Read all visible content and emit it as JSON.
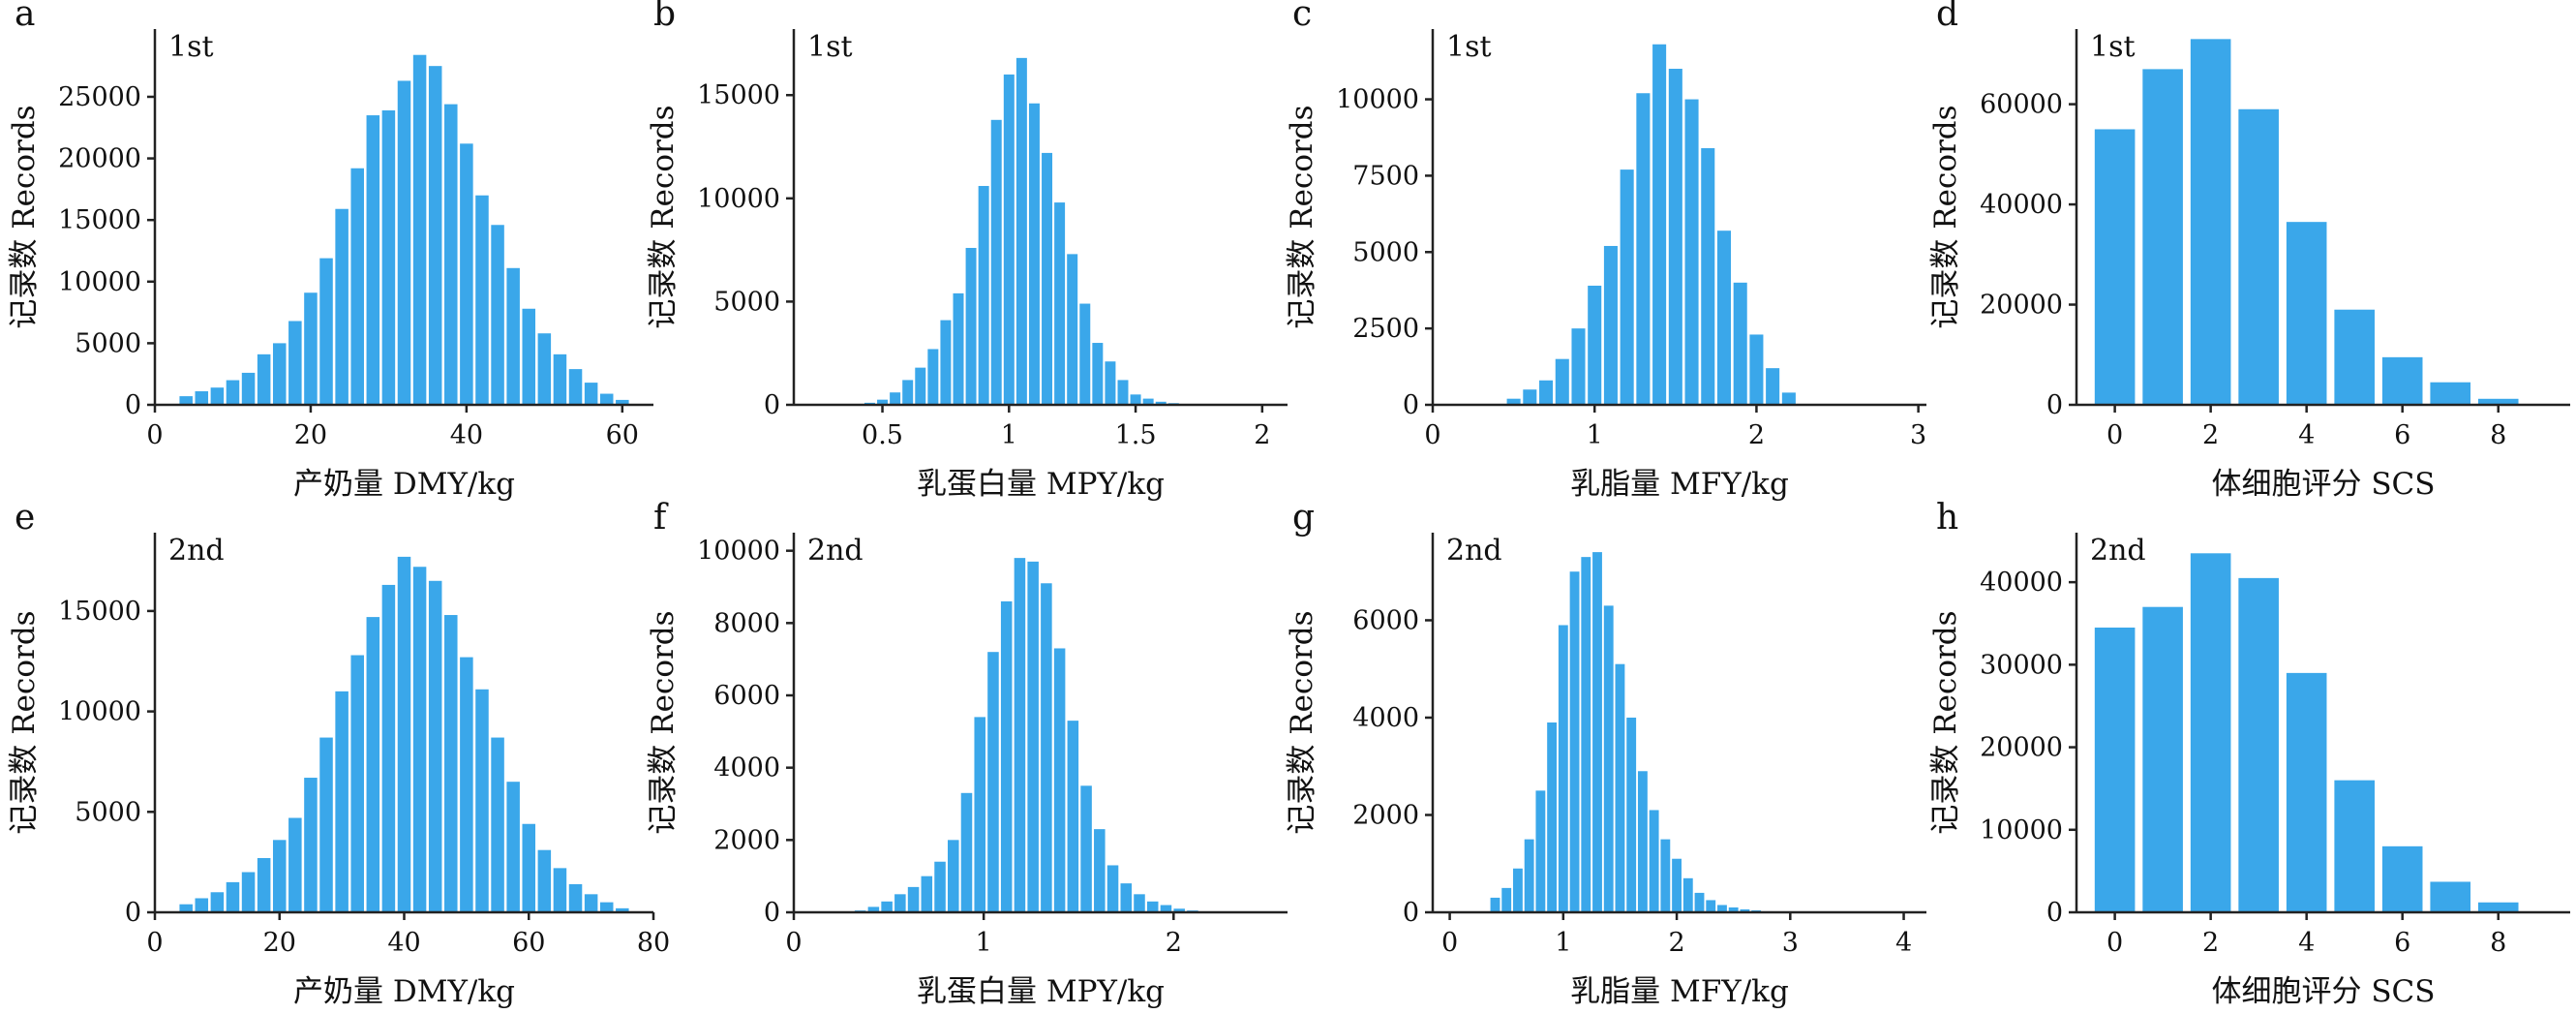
{
  "chart_data": [
    {
      "panel": "a",
      "parity": "1st",
      "type": "bar",
      "xlabel": "产奶量 DMY/kg",
      "ylabel": "记录数 Records",
      "xlim": [
        0,
        64
      ],
      "ylim": [
        0,
        30500
      ],
      "xticks": [
        0,
        20,
        40,
        60
      ],
      "yticks": [
        0,
        5000,
        10000,
        15000,
        20000,
        25000
      ],
      "x": [
        4,
        6,
        8,
        10,
        12,
        14,
        16,
        18,
        20,
        22,
        24,
        26,
        28,
        30,
        32,
        34,
        36,
        38,
        40,
        42,
        44,
        46,
        48,
        50,
        52,
        54,
        56,
        58,
        60
      ],
      "values": [
        700,
        1100,
        1400,
        2000,
        2600,
        4100,
        5000,
        6800,
        9100,
        11900,
        15900,
        19200,
        23500,
        23900,
        26300,
        28400,
        27500,
        24400,
        21200,
        17000,
        14600,
        11100,
        7800,
        5800,
        4100,
        2900,
        1800,
        900,
        400
      ]
    },
    {
      "panel": "b",
      "parity": "1st",
      "type": "bar",
      "xlabel": "乳蛋白量 MPY/kg",
      "ylabel": "记录数 Records",
      "xlim": [
        0.15,
        2.1
      ],
      "ylim": [
        0,
        18200
      ],
      "xticks": [
        0.5,
        1.0,
        1.5,
        2.0
      ],
      "yticks": [
        0,
        5000,
        10000,
        15000
      ],
      "x": [
        0.45,
        0.5,
        0.55,
        0.6,
        0.65,
        0.7,
        0.75,
        0.8,
        0.85,
        0.9,
        0.95,
        1.0,
        1.05,
        1.1,
        1.15,
        1.2,
        1.25,
        1.3,
        1.35,
        1.4,
        1.45,
        1.5,
        1.55,
        1.6,
        1.65,
        1.7
      ],
      "values": [
        100,
        250,
        600,
        1200,
        1800,
        2700,
        4100,
        5400,
        7600,
        10600,
        13800,
        16000,
        16800,
        14600,
        12200,
        9800,
        7300,
        4900,
        3000,
        2100,
        1200,
        500,
        300,
        150,
        80,
        30
      ]
    },
    {
      "panel": "c",
      "parity": "1st",
      "type": "bar",
      "xlabel": "乳脂量 MFY/kg",
      "ylabel": "记录数 Records",
      "xlim": [
        0,
        3.05
      ],
      "ylim": [
        0,
        12300
      ],
      "xticks": [
        0,
        1,
        2,
        3
      ],
      "yticks": [
        0,
        2500,
        5000,
        7500,
        10000
      ],
      "x": [
        0.5,
        0.6,
        0.7,
        0.8,
        0.9,
        1.0,
        1.1,
        1.2,
        1.3,
        1.4,
        1.5,
        1.6,
        1.7,
        1.8,
        1.9,
        2.0,
        2.1,
        2.2
      ],
      "values": [
        200,
        500,
        800,
        1500,
        2500,
        3900,
        5200,
        7700,
        10200,
        11800,
        11000,
        10000,
        8400,
        5700,
        4000,
        2300,
        1200,
        400
      ]
    },
    {
      "panel": "d",
      "parity": "1st",
      "type": "bar",
      "xlabel": "体细胞评分 SCS",
      "ylabel": "记录数 Records",
      "xlim": [
        -0.8,
        9.5
      ],
      "ylim": [
        0,
        75000
      ],
      "xticks": [
        0,
        2,
        4,
        6,
        8
      ],
      "yticks": [
        0,
        20000,
        40000,
        60000
      ],
      "x": [
        0,
        1,
        2,
        3,
        4,
        5,
        6,
        7,
        8
      ],
      "values": [
        55000,
        67000,
        73000,
        59000,
        36500,
        19000,
        9500,
        4500,
        1200
      ]
    },
    {
      "panel": "e",
      "parity": "2nd",
      "type": "bar",
      "xlabel": "产奶量 DMY/kg",
      "ylabel": "记录数 Records",
      "xlim": [
        0,
        80
      ],
      "ylim": [
        0,
        18900
      ],
      "xticks": [
        0,
        20,
        40,
        60,
        80
      ],
      "yticks": [
        0,
        5000,
        10000,
        15000
      ],
      "x": [
        5,
        7.5,
        10,
        12.5,
        15,
        17.5,
        20,
        22.5,
        25,
        27.5,
        30,
        32.5,
        35,
        37.5,
        40,
        42.5,
        45,
        47.5,
        50,
        52.5,
        55,
        57.5,
        60,
        62.5,
        65,
        67.5,
        70,
        72.5,
        75
      ],
      "values": [
        400,
        700,
        1000,
        1500,
        2000,
        2700,
        3600,
        4700,
        6700,
        8700,
        11000,
        12800,
        14700,
        16300,
        17700,
        17200,
        16500,
        14800,
        12700,
        11100,
        8700,
        6500,
        4400,
        3100,
        2200,
        1400,
        900,
        500,
        200
      ]
    },
    {
      "panel": "f",
      "parity": "2nd",
      "type": "bar",
      "xlabel": "乳蛋白量 MPY/kg",
      "ylabel": "记录数 Records",
      "xlim": [
        0,
        2.6
      ],
      "ylim": [
        0,
        10500
      ],
      "xticks": [
        0,
        1,
        2
      ],
      "yticks": [
        0,
        2000,
        4000,
        6000,
        8000,
        10000
      ],
      "x": [
        0.35,
        0.42,
        0.49,
        0.56,
        0.63,
        0.7,
        0.77,
        0.84,
        0.91,
        0.98,
        1.05,
        1.12,
        1.19,
        1.26,
        1.33,
        1.4,
        1.47,
        1.54,
        1.61,
        1.68,
        1.75,
        1.82,
        1.89,
        1.96,
        2.03,
        2.1
      ],
      "values": [
        50,
        150,
        300,
        500,
        700,
        1000,
        1400,
        2000,
        3300,
        5400,
        7200,
        8600,
        9800,
        9700,
        9100,
        7300,
        5300,
        3500,
        2300,
        1300,
        800,
        500,
        300,
        200,
        100,
        50
      ]
    },
    {
      "panel": "g",
      "parity": "2nd",
      "type": "bar",
      "xlabel": "乳脂量 MFY/kg",
      "ylabel": "记录数 Records",
      "xlim": [
        -0.15,
        4.2
      ],
      "ylim": [
        0,
        7800
      ],
      "xticks": [
        0,
        1,
        2,
        3,
        4
      ],
      "yticks": [
        0,
        2000,
        4000,
        6000
      ],
      "x": [
        0.4,
        0.5,
        0.6,
        0.7,
        0.8,
        0.9,
        1.0,
        1.1,
        1.2,
        1.3,
        1.4,
        1.5,
        1.6,
        1.7,
        1.8,
        1.9,
        2.0,
        2.1,
        2.2,
        2.3,
        2.4,
        2.5,
        2.6,
        2.7,
        2.8
      ],
      "values": [
        300,
        500,
        900,
        1500,
        2500,
        3900,
        5900,
        7000,
        7300,
        7400,
        6300,
        5100,
        4000,
        2900,
        2100,
        1500,
        1100,
        700,
        400,
        250,
        150,
        100,
        60,
        40,
        20
      ]
    },
    {
      "panel": "h",
      "parity": "2nd",
      "type": "bar",
      "xlabel": "体细胞评分 SCS",
      "ylabel": "记录数 Records",
      "xlim": [
        -0.8,
        9.5
      ],
      "ylim": [
        0,
        46000
      ],
      "xticks": [
        0,
        2,
        4,
        6,
        8
      ],
      "yticks": [
        0,
        10000,
        20000,
        30000,
        40000
      ],
      "x": [
        0,
        1,
        2,
        3,
        4,
        5,
        6,
        7,
        8
      ],
      "values": [
        34500,
        37000,
        43500,
        40500,
        29000,
        16000,
        8000,
        3700,
        1200
      ]
    }
  ]
}
